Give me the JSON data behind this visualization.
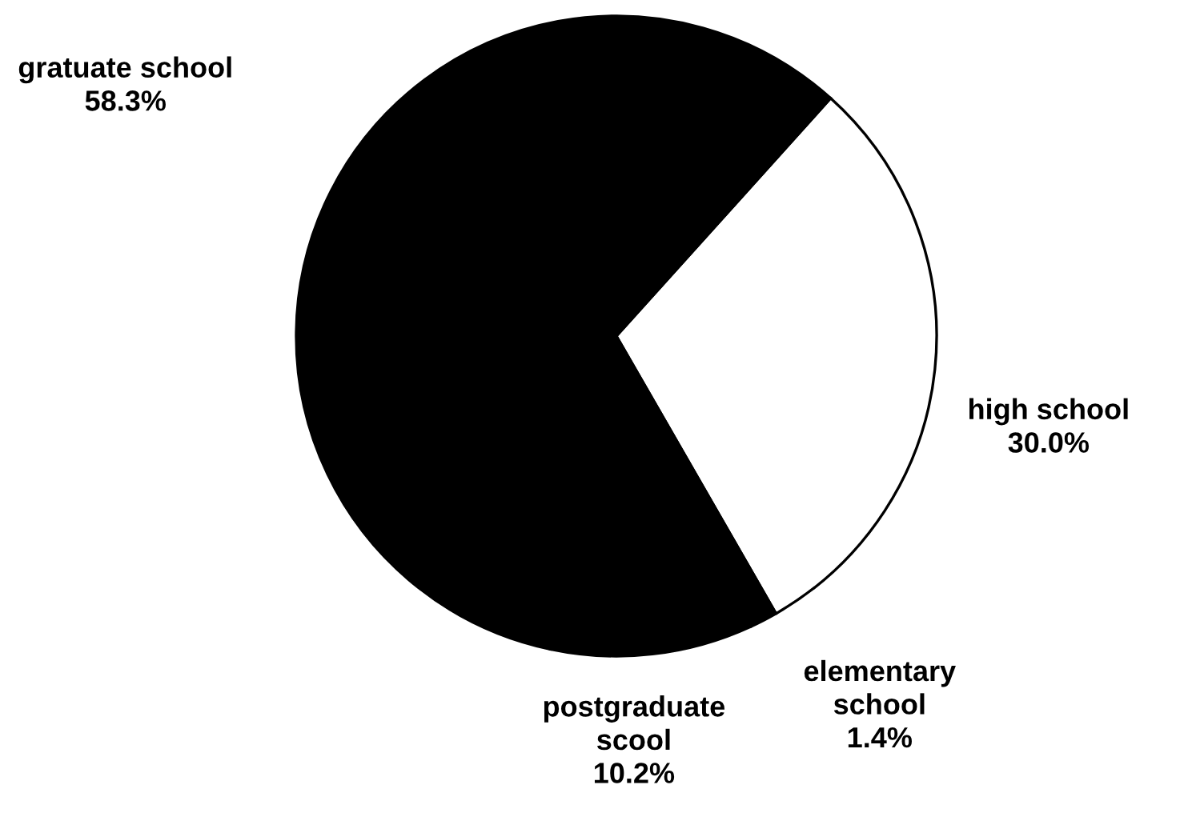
{
  "chart_data": {
    "type": "pie",
    "categories": [
      "high school",
      "elementary\nschool",
      "postgraduate\nscool",
      "gratuate school"
    ],
    "values": [
      30.0,
      1.4,
      10.2,
      58.3
    ],
    "colors": [
      "#ffffff",
      "#000000",
      "#000000",
      "#000000"
    ],
    "value_labels": [
      "30.0%",
      "1.4%",
      "10.2%",
      "58.3%"
    ],
    "legend": false
  }
}
